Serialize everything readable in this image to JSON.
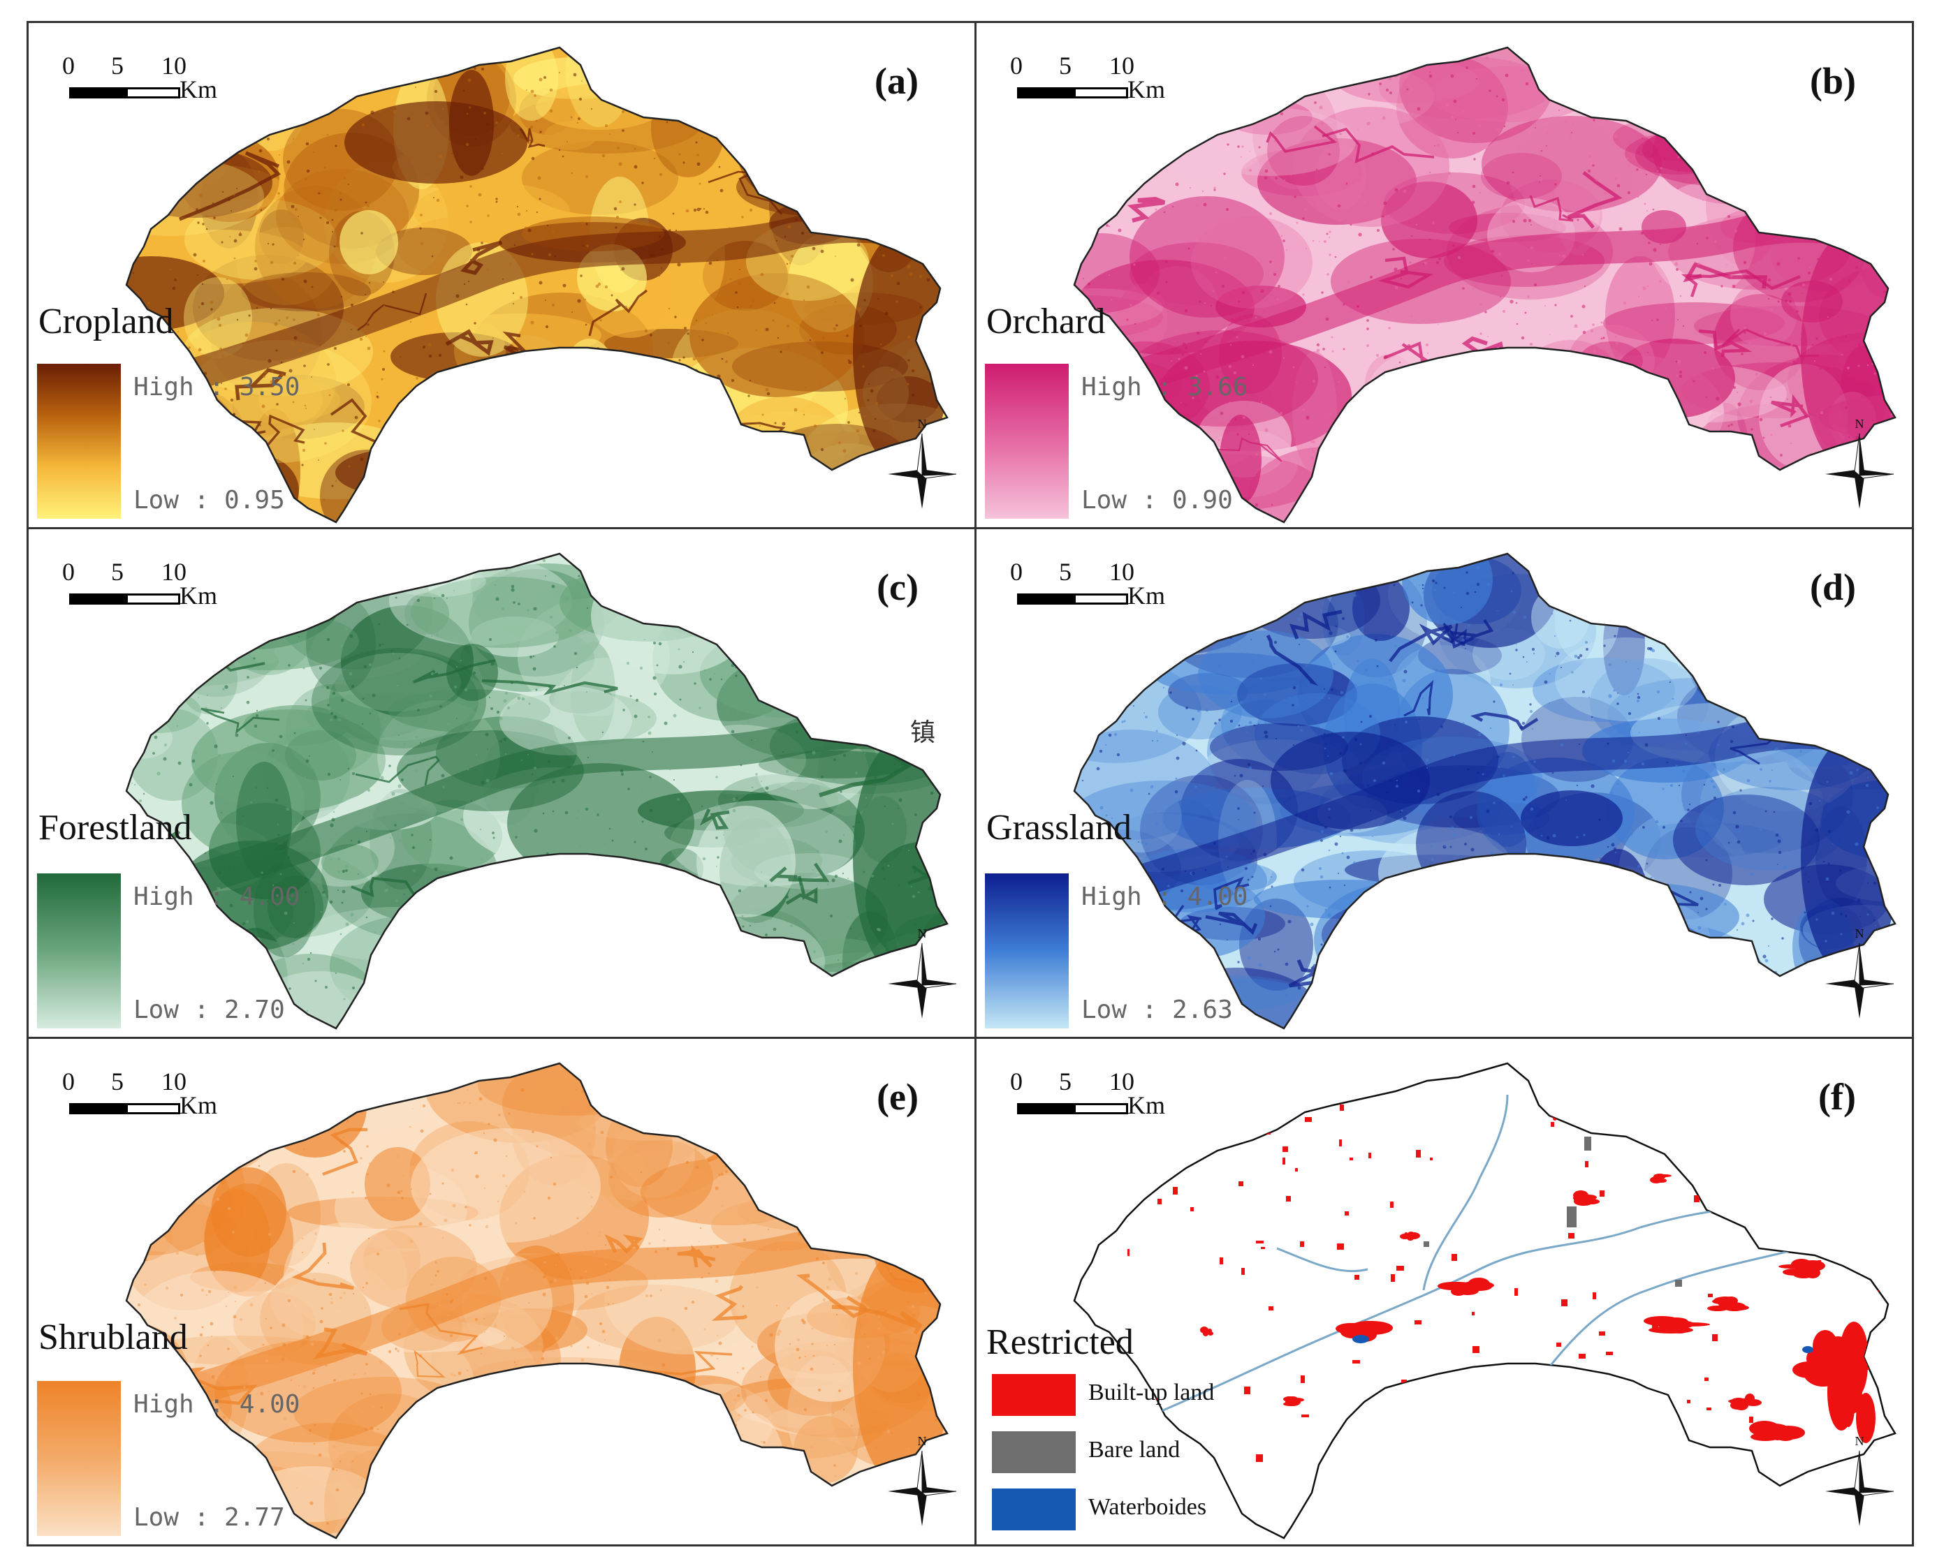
{
  "scale": {
    "ticks": [
      "0",
      "5",
      "10"
    ],
    "unit": "Km"
  },
  "compass_label": "N",
  "panels": [
    {
      "letter": "(a)",
      "title": "Cropland",
      "high_label": "High : 3.50",
      "low_label": "Low : 0.95",
      "high_value": 3.5,
      "low_value": 0.95,
      "ramp": [
        "#6b1f05",
        "#b8620f",
        "#f5b73a",
        "#fff17a"
      ]
    },
    {
      "letter": "(b)",
      "title": "Orchard",
      "high_label": "High : 3.66",
      "low_label": "Low : 0.90",
      "high_value": 3.66,
      "low_value": 0.9,
      "ramp": [
        "#cf1c70",
        "#e56aa3",
        "#f6c2da"
      ]
    },
    {
      "letter": "(c)",
      "title": "Forestland",
      "high_label": "High : 4.00",
      "low_label": "Low : 2.70",
      "high_value": 4.0,
      "low_value": 2.7,
      "ramp": [
        "#21693a",
        "#6aa57d",
        "#d5ebde"
      ]
    },
    {
      "letter": "(d)",
      "title": "Grassland",
      "high_label": "High : 4.00",
      "low_label": "Low : 2.63",
      "high_value": 4.0,
      "low_value": 2.63,
      "ramp": [
        "#0d1f8f",
        "#3f7ed6",
        "#c5e7f5"
      ]
    },
    {
      "letter": "(e)",
      "title": "Shrubland",
      "high_label": "High : 4.00",
      "low_label": "Low : 2.77",
      "high_value": 4.0,
      "low_value": 2.77,
      "ramp": [
        "#ee8328",
        "#f3aa68",
        "#fbe0c4"
      ]
    },
    {
      "letter": "(f)",
      "title": "Restricted",
      "restricted_legend": [
        {
          "label": "Built-up land",
          "color": "#ee1111"
        },
        {
          "label": "Bare land",
          "color": "#6e6e6e"
        },
        {
          "label": "Waterboides",
          "color": "#1559b5"
        }
      ]
    }
  ],
  "panel_c_annotation": "镇"
}
